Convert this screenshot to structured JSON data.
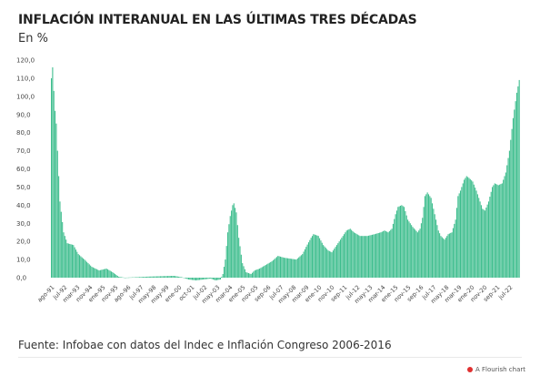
{
  "chart_data": {
    "type": "bar",
    "title": "INFLACIÓN INTERANUAL EN LAS ÚLTIMAS TRES DÉCADAS",
    "subtitle": "En %",
    "ylim": [
      0,
      120
    ],
    "yticks": [
      "0,0",
      "10,0",
      "20,0",
      "30,0",
      "40,0",
      "50,0",
      "60,0",
      "70,0",
      "80,0",
      "90,0",
      "100,0",
      "110,0",
      "120,0"
    ],
    "grid": false,
    "bar_color": "#3dbd8d",
    "x_start": "ago-91",
    "x_end": "jul-22",
    "xtick_labels": [
      "ago-91",
      "jul-92",
      "mar-93",
      "nov-94",
      "ene-95",
      "nov-95",
      "ago-96",
      "jul-97",
      "may-98",
      "may-99",
      "ene-00",
      "oct-01",
      "jul-02",
      "may-03",
      "mar-04",
      "ene-05",
      "nov-05",
      "sep-06",
      "jul-07",
      "may-08",
      "mar-09",
      "ene-10",
      "nov-10",
      "sep-11",
      "jul-12",
      "may-13",
      "mar-14",
      "ene-15",
      "nov-15",
      "sep-16",
      "jul-17",
      "may-18",
      "mar-19",
      "ene-20",
      "nov-20",
      "sep-21",
      "jul-22"
    ],
    "series_keypoints": [
      [
        0,
        110
      ],
      [
        1,
        116
      ],
      [
        2,
        103
      ],
      [
        3,
        92
      ],
      [
        4,
        85
      ],
      [
        5,
        70
      ],
      [
        7,
        42
      ],
      [
        10,
        25
      ],
      [
        13,
        19
      ],
      [
        18,
        18
      ],
      [
        22,
        13
      ],
      [
        27,
        10
      ],
      [
        33,
        6
      ],
      [
        39,
        4
      ],
      [
        45,
        5
      ],
      [
        50,
        3
      ],
      [
        55,
        0.5
      ],
      [
        60,
        0
      ],
      [
        70,
        0.3
      ],
      [
        80,
        0.6
      ],
      [
        90,
        0.8
      ],
      [
        100,
        1
      ],
      [
        107,
        0.2
      ],
      [
        112,
        -1
      ],
      [
        118,
        -1.5
      ],
      [
        124,
        -1
      ],
      [
        130,
        -0.5
      ],
      [
        134,
        -1.5
      ],
      [
        138,
        -1
      ],
      [
        140,
        2
      ],
      [
        142,
        10
      ],
      [
        144,
        25
      ],
      [
        146,
        34
      ],
      [
        148,
        40
      ],
      [
        149,
        41
      ],
      [
        151,
        36
      ],
      [
        153,
        22
      ],
      [
        156,
        8
      ],
      [
        159,
        3
      ],
      [
        163,
        2
      ],
      [
        166,
        4
      ],
      [
        170,
        5
      ],
      [
        175,
        7
      ],
      [
        180,
        9
      ],
      [
        185,
        12
      ],
      [
        190,
        11
      ],
      [
        195,
        10.5
      ],
      [
        200,
        10
      ],
      [
        205,
        13
      ],
      [
        208,
        17
      ],
      [
        212,
        22
      ],
      [
        214,
        24
      ],
      [
        218,
        23
      ],
      [
        222,
        18
      ],
      [
        226,
        15
      ],
      [
        229,
        14
      ],
      [
        233,
        18
      ],
      [
        237,
        22
      ],
      [
        241,
        26
      ],
      [
        244,
        27
      ],
      [
        247,
        25
      ],
      [
        252,
        23
      ],
      [
        258,
        23
      ],
      [
        264,
        24
      ],
      [
        269,
        25
      ],
      [
        272,
        26
      ],
      [
        275,
        25
      ],
      [
        278,
        27
      ],
      [
        281,
        35
      ],
      [
        283,
        39
      ],
      [
        286,
        40
      ],
      [
        288,
        39
      ],
      [
        291,
        32
      ],
      [
        295,
        28
      ],
      [
        299,
        25
      ],
      [
        301,
        27
      ],
      [
        303,
        33
      ],
      [
        305,
        45
      ],
      [
        307,
        47
      ],
      [
        310,
        44
      ],
      [
        313,
        35
      ],
      [
        316,
        26
      ],
      [
        318,
        23
      ],
      [
        321,
        21
      ],
      [
        324,
        24
      ],
      [
        327,
        25
      ],
      [
        330,
        32
      ],
      [
        332,
        45
      ],
      [
        334,
        48
      ],
      [
        337,
        54
      ],
      [
        339,
        56
      ],
      [
        341,
        55
      ],
      [
        344,
        53
      ],
      [
        347,
        48
      ],
      [
        350,
        42
      ],
      [
        352,
        38
      ],
      [
        354,
        37
      ],
      [
        357,
        42
      ],
      [
        360,
        50
      ],
      [
        362,
        52
      ],
      [
        365,
        51
      ],
      [
        368,
        52
      ],
      [
        371,
        58
      ],
      [
        374,
        70
      ],
      [
        377,
        88
      ],
      [
        380,
        102
      ],
      [
        382,
        109
      ]
    ]
  },
  "source_note": "Fuente: Infobae con datos del Indec e Inflación Congreso 2006-2016",
  "credit": "A Flourish chart"
}
